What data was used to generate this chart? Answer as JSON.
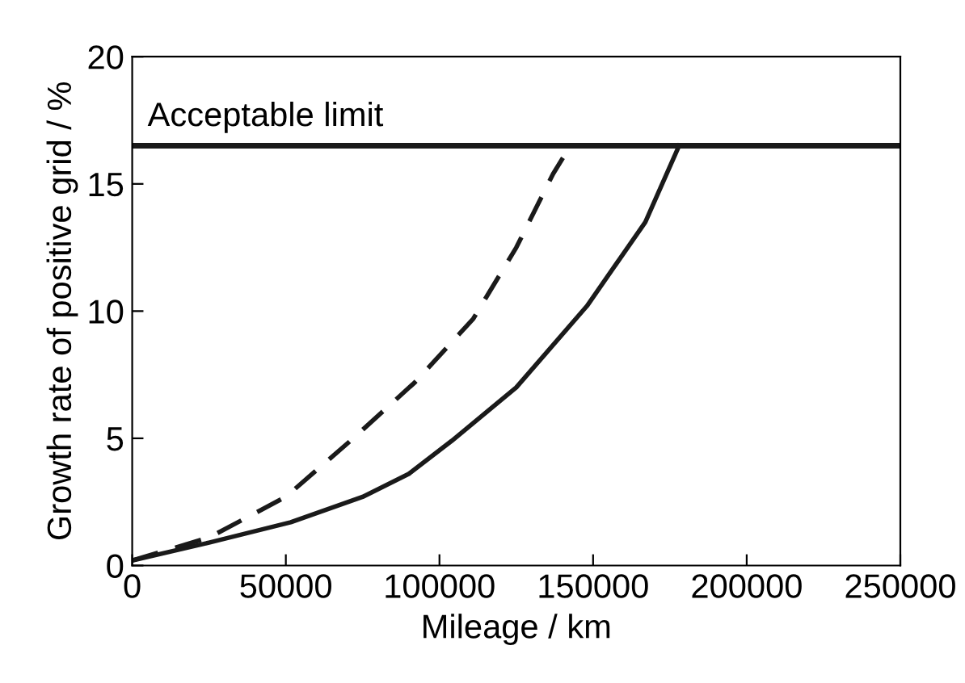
{
  "chart_data": {
    "type": "line",
    "xlabel": "Mileage / km",
    "ylabel": "Growth rate of positive grid / %",
    "xlim": [
      0,
      250000
    ],
    "xticks": [
      0,
      50000,
      100000,
      150000,
      200000,
      250000
    ],
    "ylim": [
      0,
      20
    ],
    "yticks": [
      0,
      5,
      10,
      15,
      20
    ],
    "grid": false,
    "legend": false,
    "marker": "none",
    "series": [
      {
        "color": "#1a1a1a",
        "line_style": "solid",
        "x": [
          0,
          25000,
          51600,
          75000,
          90000,
          104000,
          125000,
          148000,
          167000,
          178000
        ],
        "values": [
          0.2,
          0.9,
          1.7,
          2.7,
          3.6,
          4.9,
          7.0,
          10.2,
          13.5,
          16.5
        ]
      },
      {
        "color": "#1a1a1a",
        "line_style": "dashed",
        "x": [
          0,
          25000,
          50000,
          71000,
          92000,
          111000,
          125000,
          137000,
          142600
        ],
        "values": [
          0.2,
          1.1,
          2.7,
          4.9,
          7.2,
          9.7,
          12.5,
          15.4,
          16.5
        ]
      }
    ],
    "ref_lines": [
      {
        "axis": "y",
        "value": 16.5,
        "label": "Acceptable limit",
        "color": "#1a1a1a"
      }
    ]
  }
}
